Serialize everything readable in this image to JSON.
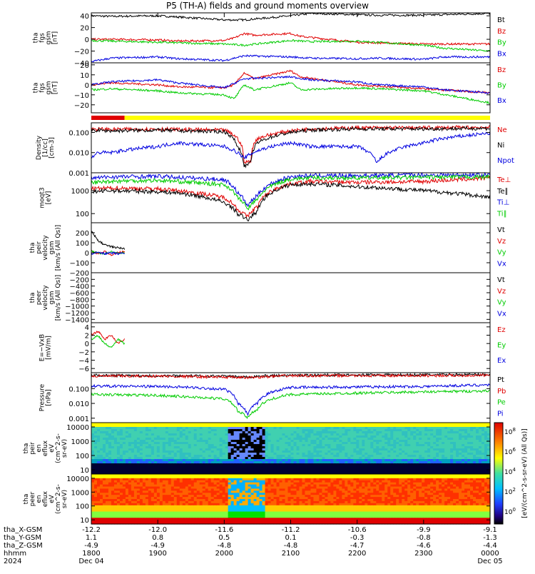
{
  "title": "P5 (TH-A) fields and ground moments overview",
  "colors": {
    "black": "#000000",
    "red": "#e00000",
    "green": "#00cc00",
    "blue": "#0000e0",
    "yellow": "#ffff00"
  },
  "status_bar": {
    "segments": [
      {
        "color": "#e00000",
        "start": 1800,
        "end": 1850
      },
      {
        "color": "#ffff00",
        "start": 1850,
        "end": 2400
      }
    ]
  },
  "xaxis": {
    "rows": [
      {
        "label": "tha_X-GSM",
        "values": [
          "-12.2",
          "-12.0",
          "-11.6",
          "-11.2",
          "-10.6",
          "-9.9",
          "-9.1"
        ]
      },
      {
        "label": "tha_Y-GSM",
        "values": [
          "1.1",
          "0.8",
          "0.5",
          "0.1",
          "-0.3",
          "-0.8",
          "-1.3"
        ]
      },
      {
        "label": "tha_Z-GSM",
        "values": [
          "-4.9",
          "-4.9",
          "-4.8",
          "-4.8",
          "-4.7",
          "-4.6",
          "-4.4"
        ]
      },
      {
        "label": "hhmm",
        "values": [
          "1800",
          "1900",
          "2000",
          "2100",
          "2200",
          "2300",
          "0000"
        ]
      }
    ],
    "year": "2024",
    "dates": [
      "Dec 04",
      "Dec 05"
    ]
  },
  "chart_data": [
    {
      "type": "line",
      "panel": "fgs_gsm_full",
      "ylabel": [
        "tha",
        "fgs",
        "gsm",
        "[nT]"
      ],
      "ylim": [
        -40,
        45
      ],
      "yticks": [
        "40",
        "20",
        "0",
        "−20",
        "−40"
      ],
      "series": [
        {
          "name": "Bt",
          "color": "#000000",
          "x": [
            1800,
            1830,
            1900,
            1930,
            2000,
            2030,
            2100,
            2130,
            2200,
            2230,
            2300,
            2330,
            2400
          ],
          "values": [
            40,
            39,
            40,
            38,
            33,
            33,
            40,
            44,
            42,
            41,
            41,
            42,
            44
          ]
        },
        {
          "name": "Bz",
          "color": "#e00000",
          "x": [
            1800,
            1830,
            1900,
            1930,
            2000,
            2015,
            2030,
            2045,
            2100,
            2115,
            2200,
            2300,
            2400
          ],
          "values": [
            0,
            0,
            -1,
            -3,
            -2,
            2,
            10,
            7,
            10,
            5,
            -5,
            -8,
            -8
          ]
        },
        {
          "name": "By",
          "color": "#00cc00",
          "x": [
            1800,
            1830,
            1900,
            1930,
            2000,
            2030,
            2100,
            2130,
            2200,
            2230,
            2300,
            2330,
            2400
          ],
          "values": [
            -2,
            -3,
            -5,
            -6,
            -8,
            -10,
            -2,
            -4,
            -3,
            -5,
            -10,
            -15,
            -20
          ]
        },
        {
          "name": "Bx",
          "color": "#0000e0",
          "x": [
            1800,
            1830,
            1900,
            1930,
            2000,
            2030,
            2100,
            2130,
            2200,
            2230,
            2300,
            2330,
            2400
          ],
          "values": [
            -38,
            -32,
            -30,
            -33,
            -36,
            -28,
            -30,
            -32,
            -33,
            -32,
            -34,
            -30,
            -30
          ]
        }
      ]
    },
    {
      "type": "line",
      "panel": "fgs_gsm_zoom",
      "ylabel": [
        "tha",
        "fgs",
        "gsm",
        "[nT]"
      ],
      "ylim": [
        -28,
        22
      ],
      "yticks": [
        "20",
        "10",
        "0",
        "−10",
        "−20"
      ],
      "series": [
        {
          "name": "Bz",
          "color": "#e00000",
          "x": [
            1800,
            1830,
            1900,
            1930,
            2000,
            2015,
            2030,
            2045,
            2100,
            2115,
            2200,
            2300,
            2400
          ],
          "values": [
            0,
            2,
            0,
            -2,
            -3,
            0,
            12,
            6,
            14,
            8,
            0,
            -4,
            -8
          ]
        },
        {
          "name": "By",
          "color": "#00cc00",
          "x": [
            1800,
            1830,
            1900,
            1930,
            2000,
            2015,
            2030,
            2045,
            2100,
            2115,
            2200,
            2300,
            2400
          ],
          "values": [
            -5,
            -4,
            -6,
            -8,
            -10,
            -14,
            0,
            -5,
            2,
            -5,
            -3,
            -6,
            -18
          ]
        },
        {
          "name": "Bx",
          "color": "#0000e0",
          "x": [
            1800,
            1830,
            1900,
            1930,
            2000,
            2030,
            2100,
            2130,
            2200,
            2230,
            2300,
            2330,
            2400
          ],
          "values": [
            0,
            3,
            5,
            2,
            -3,
            6,
            8,
            5,
            3,
            0,
            -2,
            -5,
            -8
          ]
        }
      ]
    },
    {
      "type": "line",
      "panel": "density",
      "ylabel": [
        "Density",
        "[1/cc]",
        "[cm-3]"
      ],
      "ylog": true,
      "ylim": [
        0.001,
        0.3
      ],
      "yticks": [
        "0.100",
        "0.010",
        "0.001"
      ],
      "series": [
        {
          "name": "Ne",
          "color": "#e00000",
          "x": [
            1800,
            1830,
            1900,
            1930,
            2000,
            2020,
            2030,
            2040,
            2050,
            2100,
            2130,
            2200,
            2300,
            2400
          ],
          "values": [
            0.15,
            0.14,
            0.15,
            0.14,
            0.13,
            0.05,
            0.003,
            0.004,
            0.05,
            0.12,
            0.15,
            0.17,
            0.17,
            0.18
          ]
        },
        {
          "name": "Ni",
          "color": "#000000",
          "x": [
            1800,
            1830,
            1900,
            1930,
            2000,
            2020,
            2030,
            2040,
            2050,
            2100,
            2130,
            2200,
            2300,
            2400
          ],
          "values": [
            0.13,
            0.12,
            0.13,
            0.12,
            0.11,
            0.02,
            0.002,
            0.003,
            0.03,
            0.1,
            0.13,
            0.15,
            0.15,
            0.16
          ]
        },
        {
          "name": "Npot",
          "color": "#0000e0",
          "x": [
            1800,
            1810,
            1830,
            1900,
            1930,
            2000,
            2030,
            2100,
            2130,
            2200,
            2230,
            2300,
            2330,
            2400
          ],
          "values": [
            0.005,
            0.01,
            0.01,
            0.02,
            0.03,
            0.02,
            0.005,
            0.03,
            0.02,
            0.02,
            0.003,
            0.03,
            0.05,
            0.09
          ]
        }
      ]
    },
    {
      "type": "line",
      "panel": "temperature",
      "ylabel": [
        "moqt3",
        "[eV]"
      ],
      "ylog": true,
      "ylim": [
        40,
        6000
      ],
      "yticks": [
        "1000",
        "100"
      ],
      "series": [
        {
          "name": "Te⊥",
          "color": "#e00000",
          "x": [
            1800,
            1830,
            1900,
            1930,
            2000,
            2020,
            2035,
            2050,
            2100,
            2130,
            2200,
            2300,
            2400
          ],
          "values": [
            1200,
            1300,
            1200,
            1000,
            500,
            150,
            70,
            200,
            2000,
            2500,
            2300,
            2500,
            3500
          ]
        },
        {
          "name": "Te∥",
          "color": "#000000",
          "x": [
            1800,
            1830,
            1900,
            1930,
            2000,
            2020,
            2035,
            2050,
            2100,
            2130,
            2200,
            2300,
            2400
          ],
          "values": [
            900,
            1000,
            900,
            800,
            300,
            100,
            50,
            120,
            1800,
            2000,
            1500,
            1000,
            500
          ]
        },
        {
          "name": "Ti⊥",
          "color": "#0000e0",
          "x": [
            1800,
            1830,
            1900,
            1930,
            2000,
            2020,
            2035,
            2050,
            2100,
            2130,
            2200,
            2300,
            2400
          ],
          "values": [
            3500,
            4000,
            4200,
            3800,
            3000,
            800,
            200,
            600,
            4000,
            4500,
            4500,
            4800,
            4800
          ]
        },
        {
          "name": "Ti∥",
          "color": "#00cc00",
          "x": [
            1800,
            1830,
            1900,
            1930,
            2000,
            2020,
            2035,
            2050,
            2100,
            2130,
            2200,
            2300,
            2400
          ],
          "values": [
            2200,
            2600,
            2800,
            2500,
            1800,
            500,
            150,
            400,
            3200,
            3600,
            3600,
            3800,
            4000
          ]
        }
      ]
    },
    {
      "type": "line",
      "panel": "peir_velocity",
      "ylabel": [
        "tha",
        "peir",
        "velocity",
        "gsm",
        "[km/s (All Qs)]"
      ],
      "ylim": [
        -200,
        300
      ],
      "yticks": [
        "200",
        "100",
        "0",
        "−100",
        "−200"
      ],
      "series": [
        {
          "name": "Vt",
          "color": "#000000",
          "x": [
            1800,
            1810,
            1820,
            1830,
            1840,
            1850
          ],
          "values": [
            220,
            120,
            80,
            60,
            50,
            40
          ]
        },
        {
          "name": "Vz",
          "color": "#e00000",
          "x": [
            1800,
            1810,
            1820,
            1830,
            1840,
            1850
          ],
          "values": [
            20,
            -10,
            10,
            -20,
            0,
            10
          ]
        },
        {
          "name": "Vy",
          "color": "#00cc00",
          "x": [
            1800,
            1810,
            1820,
            1830,
            1840,
            1850
          ],
          "values": [
            10,
            0,
            -10,
            10,
            -5,
            0
          ]
        },
        {
          "name": "Vx",
          "color": "#0000e0",
          "x": [
            1800,
            1810,
            1820,
            1830,
            1840,
            1850
          ],
          "values": [
            -20,
            10,
            -10,
            0,
            -10,
            -5
          ]
        }
      ]
    },
    {
      "type": "line",
      "panel": "peer_velocity",
      "ylabel": [
        "tha",
        "peer",
        "velocity",
        "gsm",
        "[km/s (All Qs)]"
      ],
      "ylim": [
        -1500,
        0
      ],
      "yticks": [
        "−200",
        "−400",
        "−600",
        "−800",
        "−1000",
        "−1200",
        "−1400"
      ],
      "series": [
        {
          "name": "Vt",
          "color": "#000000",
          "values": []
        },
        {
          "name": "Vz",
          "color": "#e00000",
          "values": []
        },
        {
          "name": "Vy",
          "color": "#00cc00",
          "values": []
        },
        {
          "name": "Vx",
          "color": "#0000e0",
          "values": []
        }
      ]
    },
    {
      "type": "line",
      "panel": "efield",
      "ylabel": [
        "E=−VxB",
        "[mV/m]"
      ],
      "ylim": [
        -7,
        5
      ],
      "yticks": [
        "4",
        "2",
        "0",
        "−2",
        "−4",
        "−6"
      ],
      "series": [
        {
          "name": "Ez",
          "color": "#e00000",
          "x": [
            1800,
            1810,
            1820,
            1830,
            1840,
            1850
          ],
          "values": [
            2,
            3,
            1,
            2,
            0,
            1
          ]
        },
        {
          "name": "Ey",
          "color": "#00cc00",
          "x": [
            1800,
            1810,
            1820,
            1830,
            1840,
            1850
          ],
          "values": [
            1,
            2,
            0,
            -1,
            1,
            0
          ]
        },
        {
          "name": "Ex",
          "color": "#0000e0",
          "values": []
        }
      ]
    },
    {
      "type": "line",
      "panel": "pressure",
      "ylabel": [
        "Pressure",
        "[nPa]"
      ],
      "ylog": true,
      "ylim": [
        0.0005,
        1.2
      ],
      "yticks": [
        "0.100",
        "0.010",
        "0.001"
      ],
      "series": [
        {
          "name": "Pt",
          "color": "#000000",
          "x": [
            1800,
            1900,
            2000,
            2030,
            2050,
            2100,
            2200,
            2300,
            2400
          ],
          "values": [
            0.8,
            0.75,
            0.7,
            0.6,
            0.7,
            0.8,
            0.85,
            0.85,
            0.9
          ]
        },
        {
          "name": "Pb",
          "color": "#e00000",
          "x": [
            1800,
            1900,
            2000,
            2030,
            2050,
            2100,
            2200,
            2300,
            2400
          ],
          "values": [
            0.7,
            0.7,
            0.6,
            0.55,
            0.6,
            0.75,
            0.75,
            0.75,
            0.8
          ]
        },
        {
          "name": "Pe",
          "color": "#00cc00",
          "x": [
            1800,
            1900,
            1930,
            2000,
            2020,
            2035,
            2050,
            2100,
            2200,
            2300,
            2400
          ],
          "values": [
            0.04,
            0.035,
            0.03,
            0.02,
            0.003,
            0.001,
            0.004,
            0.04,
            0.05,
            0.06,
            0.07
          ]
        },
        {
          "name": "Pi",
          "color": "#0000e0",
          "x": [
            1800,
            1900,
            1930,
            2000,
            2020,
            2035,
            2050,
            2100,
            2200,
            2300,
            2400
          ],
          "values": [
            0.15,
            0.14,
            0.13,
            0.09,
            0.01,
            0.0015,
            0.01,
            0.12,
            0.13,
            0.14,
            0.18
          ]
        }
      ]
    },
    {
      "type": "heatmap",
      "panel": "peir_en_eflux",
      "ylabel": [
        "tha",
        "peir",
        "en",
        "eflux",
        "eV",
        "(cm^2-s-",
        "sr-eV)"
      ],
      "ylog": true,
      "ylim": [
        5,
        20000
      ],
      "yticks": [
        "10000",
        "1000",
        "100",
        "10"
      ]
    },
    {
      "type": "heatmap",
      "panel": "peer_en_eflux",
      "ylabel": [
        "tha",
        "peer",
        "en",
        "eflux",
        "eV",
        "(cm^2-s-",
        "sr-eV)"
      ],
      "ylog": true,
      "ylim": [
        5,
        20000
      ],
      "yticks": [
        "10000",
        "1000",
        "100",
        "10"
      ]
    }
  ],
  "colorbar": {
    "label": "[eV/(cm^2-s-sr-eV) (All Qs)]",
    "ticks": [
      {
        "base": "10",
        "exp": "8"
      },
      {
        "base": "10",
        "exp": "6"
      },
      {
        "base": "10",
        "exp": "4"
      },
      {
        "base": "10",
        "exp": "2"
      },
      {
        "base": "10",
        "exp": "0"
      }
    ]
  }
}
